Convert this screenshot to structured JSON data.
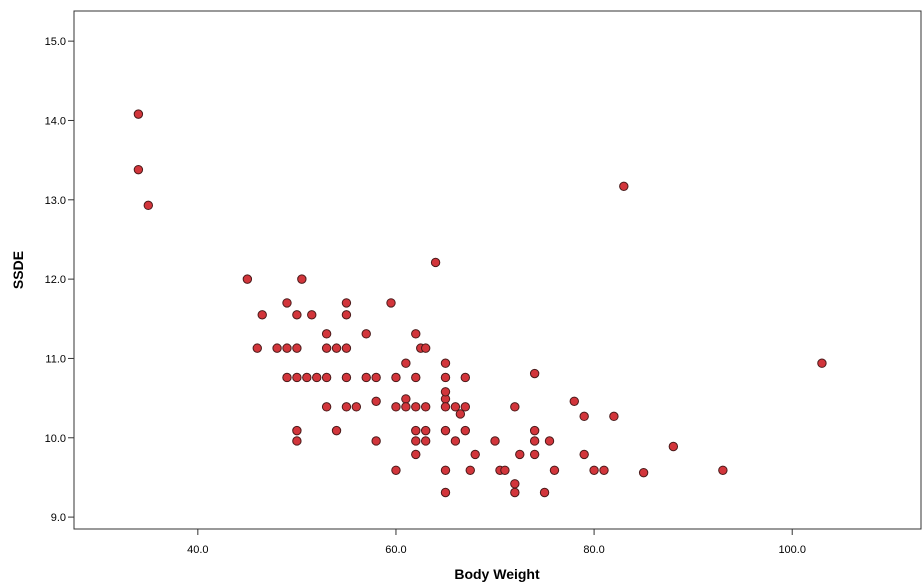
{
  "chart_data": {
    "type": "scatter",
    "title": "",
    "xlabel": "Body Weight",
    "ylabel": "SSDE",
    "xlim": [
      27.5,
      113
    ],
    "ylim": [
      8.85,
      15.38
    ],
    "xticks": [
      40,
      60,
      80,
      100
    ],
    "yticks": [
      9,
      10,
      11,
      12,
      13,
      14,
      15
    ],
    "x_tick_labels": [
      "40.0",
      "60.0",
      "80.0",
      "100.0"
    ],
    "y_tick_labels": [
      "9.0",
      "10.0",
      "11.0",
      "12.0",
      "13.0",
      "14.0",
      "15.0"
    ],
    "grid": false,
    "legend": "none",
    "marker_fill": "#d2353b",
    "marker_edge": "#4a1a1a",
    "points": [
      [
        34,
        14.08
      ],
      [
        34,
        13.38
      ],
      [
        35,
        12.93
      ],
      [
        83,
        13.17
      ],
      [
        64,
        12.21
      ],
      [
        45,
        12.0
      ],
      [
        50.5,
        12.0
      ],
      [
        49,
        11.7
      ],
      [
        55,
        11.7
      ],
      [
        59.5,
        11.7
      ],
      [
        46.5,
        11.55
      ],
      [
        50,
        11.55
      ],
      [
        51.5,
        11.55
      ],
      [
        55,
        11.55
      ],
      [
        53,
        11.31
      ],
      [
        57,
        11.31
      ],
      [
        62,
        11.31
      ],
      [
        46,
        11.13
      ],
      [
        48,
        11.13
      ],
      [
        49,
        11.13
      ],
      [
        50,
        11.13
      ],
      [
        53,
        11.13
      ],
      [
        54,
        11.13
      ],
      [
        55,
        11.13
      ],
      [
        62.5,
        11.13
      ],
      [
        63,
        11.13
      ],
      [
        61,
        10.94
      ],
      [
        65,
        10.94
      ],
      [
        103,
        10.94
      ],
      [
        74,
        10.81
      ],
      [
        49,
        10.76
      ],
      [
        50,
        10.76
      ],
      [
        51,
        10.76
      ],
      [
        52,
        10.76
      ],
      [
        53,
        10.76
      ],
      [
        55,
        10.76
      ],
      [
        57,
        10.76
      ],
      [
        58,
        10.76
      ],
      [
        60,
        10.76
      ],
      [
        62,
        10.76
      ],
      [
        65,
        10.76
      ],
      [
        67,
        10.76
      ],
      [
        61,
        10.49
      ],
      [
        65,
        10.49
      ],
      [
        58,
        10.46
      ],
      [
        78,
        10.46
      ],
      [
        53,
        10.39
      ],
      [
        55,
        10.39
      ],
      [
        56,
        10.39
      ],
      [
        60,
        10.39
      ],
      [
        61,
        10.39
      ],
      [
        62,
        10.39
      ],
      [
        63,
        10.39
      ],
      [
        65,
        10.39
      ],
      [
        66,
        10.39
      ],
      [
        67,
        10.39
      ],
      [
        72,
        10.39
      ],
      [
        65,
        10.58
      ],
      [
        66.5,
        10.3
      ],
      [
        79,
        10.27
      ],
      [
        82,
        10.27
      ],
      [
        50,
        10.09
      ],
      [
        54,
        10.09
      ],
      [
        62,
        10.09
      ],
      [
        63,
        10.09
      ],
      [
        65,
        10.09
      ],
      [
        67,
        10.09
      ],
      [
        74,
        10.09
      ],
      [
        50,
        9.96
      ],
      [
        58,
        9.96
      ],
      [
        62,
        9.96
      ],
      [
        63,
        9.96
      ],
      [
        66,
        9.96
      ],
      [
        70,
        9.96
      ],
      [
        74,
        9.96
      ],
      [
        75.5,
        9.96
      ],
      [
        88,
        9.89
      ],
      [
        62,
        9.79
      ],
      [
        68,
        9.79
      ],
      [
        72.5,
        9.79
      ],
      [
        74,
        9.79
      ],
      [
        79,
        9.79
      ],
      [
        60,
        9.59
      ],
      [
        65,
        9.59
      ],
      [
        67.5,
        9.59
      ],
      [
        70.5,
        9.59
      ],
      [
        71,
        9.59
      ],
      [
        76,
        9.59
      ],
      [
        80,
        9.59
      ],
      [
        81,
        9.59
      ],
      [
        85,
        9.56
      ],
      [
        93,
        9.59
      ],
      [
        72,
        9.42
      ],
      [
        65,
        9.31
      ],
      [
        72,
        9.31
      ],
      [
        75,
        9.31
      ]
    ]
  }
}
